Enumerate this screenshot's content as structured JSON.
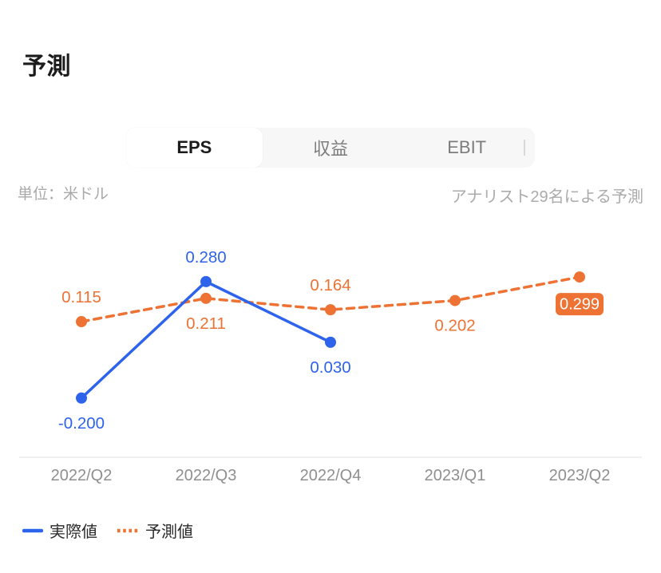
{
  "page": {
    "title": "予測"
  },
  "tabs": {
    "items": [
      {
        "label": "EPS",
        "active": true
      },
      {
        "label": "収益",
        "active": false
      },
      {
        "label": "EBIT",
        "active": false
      }
    ]
  },
  "subheader": {
    "unit": "単位：米ドル",
    "analysts": "アナリスト29名による予測"
  },
  "chart_data": {
    "type": "line",
    "title": "予測",
    "xlabel": "",
    "ylabel": "単位：米ドル",
    "categories": [
      "2022/Q2",
      "2022/Q3",
      "2022/Q4",
      "2023/Q1",
      "2023/Q2"
    ],
    "ylim": [
      -0.45,
      0.45
    ],
    "grid": false,
    "legend_position": "bottom-left",
    "axis_color": "#ececec",
    "tick_color": "#8f8f8f",
    "series": [
      {
        "key": "actual",
        "name": "実際値",
        "style": "solid",
        "color": "#2e63eb",
        "points": [
          {
            "category": "2022/Q2",
            "value": -0.2,
            "label": "-0.200",
            "label_pos": "below"
          },
          {
            "category": "2022/Q3",
            "value": 0.28,
            "label": "0.280",
            "label_pos": "above"
          },
          {
            "category": "2022/Q4",
            "value": 0.03,
            "label": "0.030",
            "label_pos": "below"
          }
        ]
      },
      {
        "key": "forecast",
        "name": "予測値",
        "style": "dashed",
        "color": "#ed7233",
        "points": [
          {
            "category": "2022/Q2",
            "value": 0.115,
            "label": "0.115",
            "label_pos": "above"
          },
          {
            "category": "2022/Q3",
            "value": 0.211,
            "label": "0.211",
            "label_pos": "below"
          },
          {
            "category": "2022/Q4",
            "value": 0.164,
            "label": "0.164",
            "label_pos": "above"
          },
          {
            "category": "2023/Q1",
            "value": 0.202,
            "label": "0.202",
            "label_pos": "below"
          },
          {
            "category": "2023/Q2",
            "value": 0.299,
            "label": "0.299",
            "label_pos": "badge"
          }
        ]
      }
    ]
  },
  "legend": {
    "items": [
      {
        "key": "actual",
        "label": "実際値",
        "style": "solid",
        "color": "#2e63eb"
      },
      {
        "key": "forecast",
        "label": "予測値",
        "style": "dashed",
        "color": "#ed7233"
      }
    ]
  }
}
